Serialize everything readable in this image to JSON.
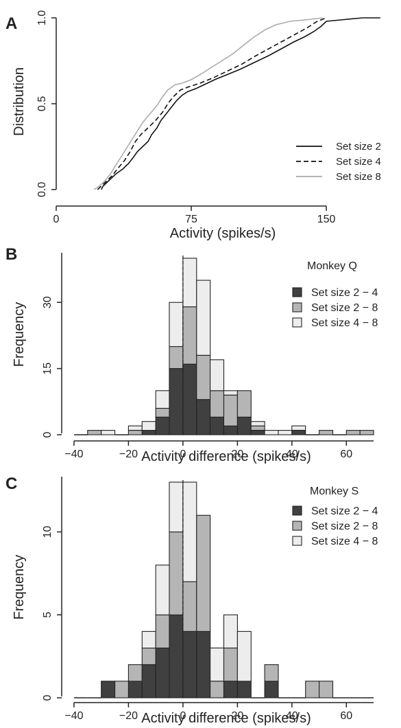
{
  "chart_data": [
    {
      "panel_label": "A",
      "type": "line",
      "xlabel": "Activity (spikes/s)",
      "ylabel": "Distribution",
      "xlim": [
        0,
        185
      ],
      "ylim": [
        0,
        1
      ],
      "xticks": [
        0,
        75,
        150
      ],
      "yticks": [
        0.0,
        0.5,
        1.0
      ],
      "ytick_labels": [
        "0.0",
        "0.5",
        "1.0"
      ],
      "legend_position": "bottom-right",
      "series": [
        {
          "name": "Set size 2",
          "color": "#111111",
          "dash": "solid",
          "points": [
            [
              25,
              0
            ],
            [
              26,
              0.02
            ],
            [
              28,
              0.04
            ],
            [
              30,
              0.06
            ],
            [
              33,
              0.09
            ],
            [
              37,
              0.12
            ],
            [
              40,
              0.15
            ],
            [
              43,
              0.19
            ],
            [
              45,
              0.22
            ],
            [
              48,
              0.25
            ],
            [
              51,
              0.28
            ],
            [
              53,
              0.32
            ],
            [
              56,
              0.36
            ],
            [
              58,
              0.4
            ],
            [
              61,
              0.44
            ],
            [
              64,
              0.48
            ],
            [
              67,
              0.52
            ],
            [
              70,
              0.55
            ],
            [
              73,
              0.57
            ],
            [
              78,
              0.59
            ],
            [
              82,
              0.61
            ],
            [
              88,
              0.64
            ],
            [
              95,
              0.67
            ],
            [
              102,
              0.7
            ],
            [
              110,
              0.74
            ],
            [
              118,
              0.78
            ],
            [
              125,
              0.82
            ],
            [
              132,
              0.86
            ],
            [
              138,
              0.89
            ],
            [
              143,
              0.92
            ],
            [
              147,
              0.95
            ],
            [
              150,
              0.98
            ],
            [
              160,
              0.99
            ],
            [
              170,
              1.0
            ],
            [
              180,
              1.0
            ]
          ]
        },
        {
          "name": "Set size 4",
          "color": "#111111",
          "dash": "dashed",
          "points": [
            [
              23,
              0
            ],
            [
              25,
              0.02
            ],
            [
              28,
              0.05
            ],
            [
              31,
              0.08
            ],
            [
              34,
              0.12
            ],
            [
              38,
              0.17
            ],
            [
              41,
              0.22
            ],
            [
              44,
              0.28
            ],
            [
              47,
              0.32
            ],
            [
              51,
              0.36
            ],
            [
              55,
              0.4
            ],
            [
              59,
              0.45
            ],
            [
              62,
              0.5
            ],
            [
              65,
              0.54
            ],
            [
              69,
              0.58
            ],
            [
              74,
              0.6
            ],
            [
              80,
              0.62
            ],
            [
              87,
              0.65
            ],
            [
              95,
              0.69
            ],
            [
              103,
              0.73
            ],
            [
              111,
              0.78
            ],
            [
              118,
              0.82
            ],
            [
              125,
              0.86
            ],
            [
              132,
              0.9
            ],
            [
              139,
              0.94
            ],
            [
              145,
              0.98
            ],
            [
              150,
              1.0
            ]
          ]
        },
        {
          "name": "Set size 8",
          "color": "#aaaaaa",
          "dash": "solid",
          "points": [
            [
              21,
              0
            ],
            [
              24,
              0.02
            ],
            [
              27,
              0.05
            ],
            [
              30,
              0.09
            ],
            [
              33,
              0.14
            ],
            [
              36,
              0.19
            ],
            [
              39,
              0.24
            ],
            [
              42,
              0.29
            ],
            [
              45,
              0.34
            ],
            [
              48,
              0.39
            ],
            [
              52,
              0.44
            ],
            [
              56,
              0.49
            ],
            [
              59,
              0.54
            ],
            [
              62,
              0.58
            ],
            [
              66,
              0.61
            ],
            [
              70,
              0.62
            ],
            [
              75,
              0.64
            ],
            [
              80,
              0.67
            ],
            [
              86,
              0.71
            ],
            [
              92,
              0.75
            ],
            [
              98,
              0.79
            ],
            [
              104,
              0.84
            ],
            [
              110,
              0.89
            ],
            [
              116,
              0.93
            ],
            [
              122,
              0.96
            ],
            [
              130,
              0.98
            ],
            [
              140,
              0.99
            ],
            [
              148,
              1.0
            ]
          ]
        }
      ]
    },
    {
      "panel_label": "B",
      "type": "bar",
      "stacked": true,
      "title": "Monkey Q",
      "xlabel": "Activity difference (spikes/s)",
      "ylabel": "Frequency",
      "xlim": [
        -42,
        72
      ],
      "ylim": [
        0,
        40
      ],
      "xticks": [
        -40,
        -20,
        0,
        20,
        40,
        60
      ],
      "yticks": [
        0,
        15,
        30
      ],
      "dashed_line_x": 0,
      "legend_position": "top-right",
      "bin_width": 5,
      "bin_starts": [
        -40,
        -35,
        -30,
        -25,
        -20,
        -15,
        -10,
        -5,
        0,
        5,
        10,
        15,
        20,
        25,
        30,
        35,
        40,
        45,
        50,
        55,
        60,
        65
      ],
      "series": [
        {
          "name": "Set size 2 − 4",
          "color": "#404040",
          "values": [
            0,
            0,
            0,
            0,
            0,
            1,
            4,
            15,
            16,
            8,
            4,
            2,
            4,
            1,
            0,
            0,
            1,
            0,
            0,
            0,
            0,
            0
          ]
        },
        {
          "name": "Set size 2 − 8",
          "color": "#b5b5b5",
          "values": [
            0,
            1,
            0,
            0,
            1,
            0,
            2,
            5,
            13,
            10,
            6,
            7,
            6,
            1,
            0,
            0,
            0,
            0,
            1,
            0,
            1,
            1
          ]
        },
        {
          "name": "Set size 4 − 8",
          "color": "#ededed",
          "values": [
            0,
            0,
            1,
            0,
            1,
            2,
            4,
            10,
            11,
            17,
            7,
            1,
            0,
            1,
            1,
            1,
            1,
            0,
            0,
            0,
            0,
            0
          ]
        }
      ]
    },
    {
      "panel_label": "C",
      "type": "bar",
      "stacked": true,
      "title": "Monkey S",
      "xlabel": "Activity difference (spikes/s)",
      "ylabel": "Frequency",
      "xlim": [
        -42,
        72
      ],
      "ylim": [
        0,
        13
      ],
      "xticks": [
        -40,
        -20,
        0,
        20,
        40,
        60
      ],
      "yticks": [
        0,
        5,
        10
      ],
      "dashed_line_x": 0,
      "legend_position": "top-right",
      "bin_width": 5,
      "bin_starts": [
        -40,
        -35,
        -30,
        -25,
        -20,
        -15,
        -10,
        -5,
        0,
        5,
        10,
        15,
        20,
        25,
        30,
        35,
        40,
        45,
        50,
        55,
        60,
        65
      ],
      "series": [
        {
          "name": "Set size 2 − 4",
          "color": "#404040",
          "values": [
            0,
            0,
            1,
            0,
            1,
            2,
            3,
            5,
            4,
            4,
            0,
            1,
            1,
            0,
            1,
            0,
            0,
            0,
            0,
            0,
            0,
            0
          ]
        },
        {
          "name": "Set size 2 − 8",
          "color": "#b5b5b5",
          "values": [
            0,
            0,
            0,
            1,
            1,
            1,
            2,
            5,
            3,
            7,
            1,
            2,
            0,
            0,
            1,
            0,
            0,
            1,
            1,
            0,
            0,
            0
          ]
        },
        {
          "name": "Set size 4 − 8",
          "color": "#ededed",
          "values": [
            0,
            0,
            0,
            0,
            0,
            1,
            3,
            3,
            6,
            0,
            2,
            2,
            3,
            0,
            0,
            0,
            0,
            0,
            0,
            0,
            0,
            0
          ]
        }
      ]
    }
  ]
}
